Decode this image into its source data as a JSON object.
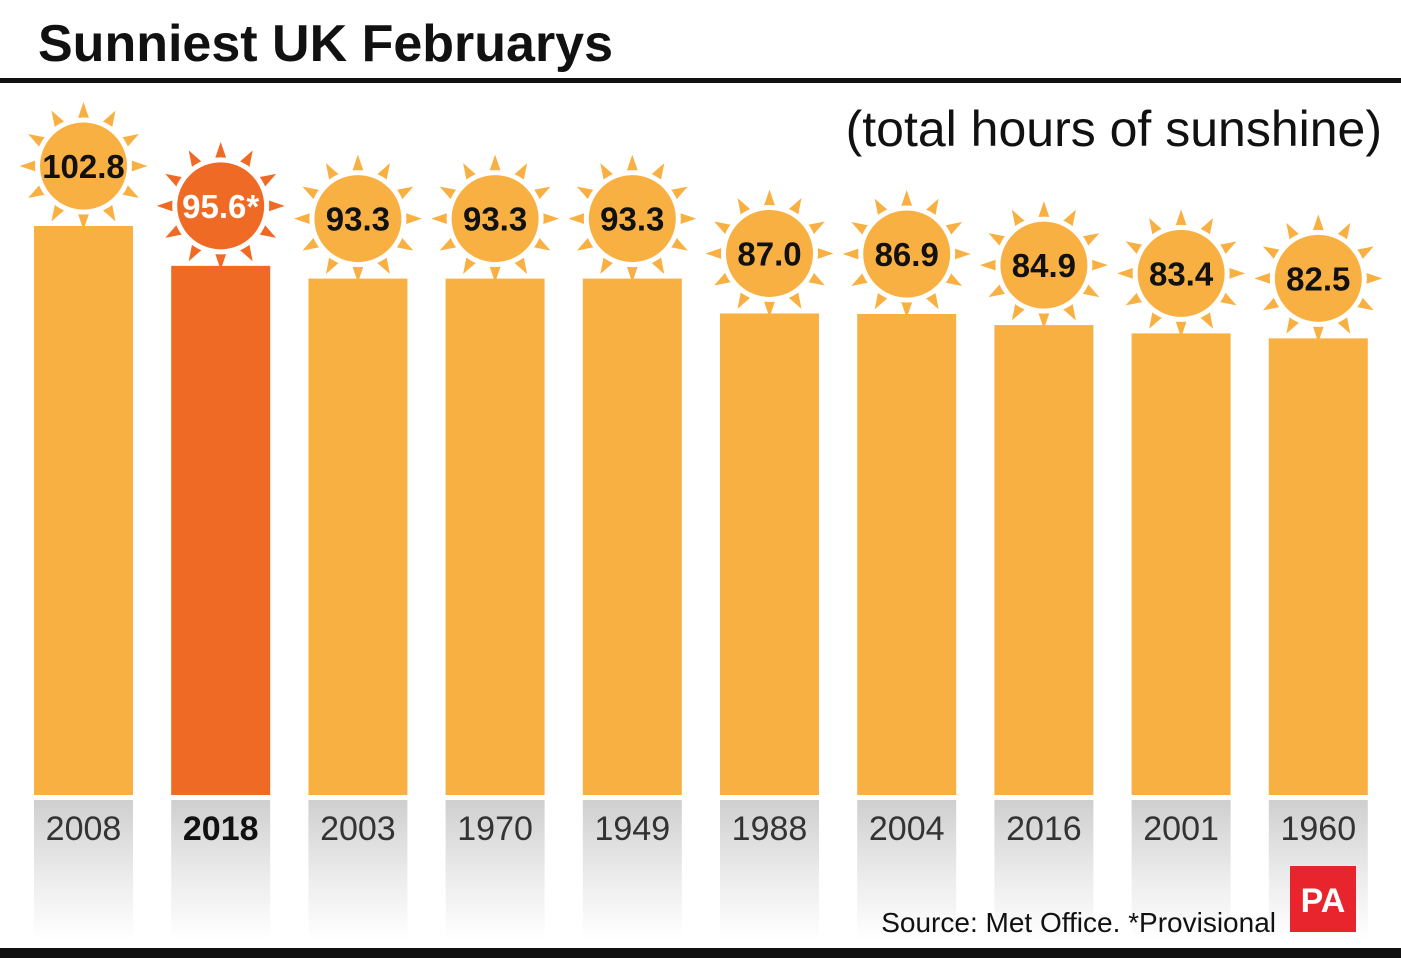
{
  "chart_data": {
    "type": "bar",
    "title": "Sunniest UK Februarys",
    "subtitle": "(total hours of sunshine)",
    "categories": [
      "2008",
      "2018",
      "2003",
      "1970",
      "1949",
      "1988",
      "2004",
      "2016",
      "2001",
      "1960"
    ],
    "values": [
      102.8,
      95.6,
      93.3,
      93.3,
      93.3,
      87.0,
      86.9,
      84.9,
      83.4,
      82.5
    ],
    "value_labels": [
      "102.8",
      "95.6*",
      "93.3",
      "93.3",
      "93.3",
      "87.0",
      "86.9",
      "84.9",
      "83.4",
      "82.5"
    ],
    "highlight_category": "2018",
    "ylim": [
      0,
      102.8
    ],
    "grid": false,
    "source": "Source: Met Office. *Provisional"
  },
  "logo": "PA",
  "colors": {
    "bar": "#f9b042",
    "highlight": "#ef6a24",
    "logo_bg": "#e8252d",
    "rule": "#111111"
  }
}
